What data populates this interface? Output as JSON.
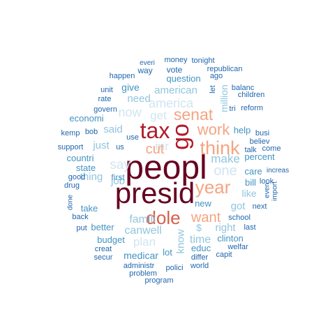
{
  "word_cloud": {
    "palette": {
      "darkest_red": "#67001f",
      "dark_red": "#b2182b",
      "salmon": "#d6604d",
      "light_salmon": "#f4a582",
      "pale_peach": "#fddbc7",
      "pale_blue": "#d1e5f0",
      "light_blue": "#92c5de",
      "mid_blue": "#4393c3",
      "dark_blue": "#2166ac"
    },
    "words": [
      {
        "text": "peopl",
        "color": "#67001f"
      },
      {
        "text": "presid",
        "color": "#67001f"
      },
      {
        "text": "tax",
        "color": "#b2182b"
      },
      {
        "text": "go",
        "color": "#b2182b"
      },
      {
        "text": "dole",
        "color": "#d6604d"
      },
      {
        "text": "year",
        "color": "#f4a582"
      },
      {
        "text": "think",
        "color": "#f4a582"
      },
      {
        "text": "senat",
        "color": "#f4a582"
      },
      {
        "text": "work",
        "color": "#f4a582"
      },
      {
        "text": "want",
        "color": "#f4a582"
      },
      {
        "text": "cut",
        "color": "#f4a582"
      },
      {
        "text": "one",
        "color": "#d1e5f0"
      },
      {
        "text": "make",
        "color": "#92c5de"
      },
      {
        "text": "get",
        "color": "#d1e5f0"
      },
      {
        "text": "america",
        "color": "#d1e5f0"
      },
      {
        "text": "now",
        "color": "#d1e5f0"
      },
      {
        "text": "say",
        "color": "#d1e5f0"
      },
      {
        "text": "mr",
        "color": "#d1e5f0"
      },
      {
        "text": "famili",
        "color": "#92c5de"
      },
      {
        "text": "plan",
        "color": "#d1e5f0"
      },
      {
        "text": "canwell",
        "color": "#92c5de"
      },
      {
        "text": "time",
        "color": "#92c5de"
      },
      {
        "text": "right",
        "color": "#92c5de"
      },
      {
        "text": "got",
        "color": "#92c5de"
      },
      {
        "text": "know",
        "color": "#92c5de"
      },
      {
        "text": "american",
        "color": "#92c5de"
      },
      {
        "text": "need",
        "color": "#92c5de"
      },
      {
        "text": "said",
        "color": "#92c5de"
      },
      {
        "text": "just",
        "color": "#92c5de"
      },
      {
        "text": "thing",
        "color": "#92c5de"
      },
      {
        "text": "job",
        "color": "#92c5de"
      },
      {
        "text": "like",
        "color": "#92c5de"
      },
      {
        "text": "million",
        "color": "#92c5de"
      },
      {
        "text": "give",
        "color": "#4393c3"
      },
      {
        "text": "question",
        "color": "#4393c3"
      },
      {
        "text": "economi",
        "color": "#4393c3"
      },
      {
        "text": "state",
        "color": "#4393c3"
      },
      {
        "text": "countri",
        "color": "#4393c3"
      },
      {
        "text": "take",
        "color": "#4393c3"
      },
      {
        "text": "better",
        "color": "#4393c3"
      },
      {
        "text": "budget",
        "color": "#4393c3"
      },
      {
        "text": "medicar",
        "color": "#4393c3"
      },
      {
        "text": "first",
        "color": "#4393c3"
      },
      {
        "text": "new",
        "color": "#4393c3"
      },
      {
        "text": "$",
        "color": "#92c5de"
      },
      {
        "text": "educ",
        "color": "#4393c3"
      },
      {
        "text": "lot",
        "color": "#4393c3"
      },
      {
        "text": "bill",
        "color": "#4393c3"
      },
      {
        "text": "percent",
        "color": "#4393c3"
      },
      {
        "text": "care",
        "color": "#4393c3"
      },
      {
        "text": "help",
        "color": "#4393c3"
      },
      {
        "text": "clinton",
        "color": "#4393c3"
      },
      {
        "text": "way",
        "color": "#2166ac"
      },
      {
        "text": "everi",
        "color": "#2166ac"
      },
      {
        "text": "money",
        "color": "#2166ac"
      },
      {
        "text": "tonight",
        "color": "#2166ac"
      },
      {
        "text": "vote",
        "color": "#2166ac"
      },
      {
        "text": "republican",
        "color": "#2166ac"
      },
      {
        "text": "ago",
        "color": "#2166ac"
      },
      {
        "text": "happen",
        "color": "#2166ac"
      },
      {
        "text": "let",
        "color": "#2166ac"
      },
      {
        "text": "balanc",
        "color": "#2166ac"
      },
      {
        "text": "children",
        "color": "#2166ac"
      },
      {
        "text": "unit",
        "color": "#2166ac"
      },
      {
        "text": "rate",
        "color": "#2166ac"
      },
      {
        "text": "govern",
        "color": "#2166ac"
      },
      {
        "text": "tri",
        "color": "#2166ac"
      },
      {
        "text": "reform",
        "color": "#2166ac"
      },
      {
        "text": "kemp",
        "color": "#2166ac"
      },
      {
        "text": "bob",
        "color": "#2166ac"
      },
      {
        "text": "use",
        "color": "#2166ac"
      },
      {
        "text": "us",
        "color": "#2166ac"
      },
      {
        "text": "support",
        "color": "#2166ac"
      },
      {
        "text": "busi",
        "color": "#2166ac"
      },
      {
        "text": "believ",
        "color": "#2166ac"
      },
      {
        "text": "come",
        "color": "#2166ac"
      },
      {
        "text": "talk",
        "color": "#2166ac"
      },
      {
        "text": "look",
        "color": "#2166ac"
      },
      {
        "text": "increas",
        "color": "#2166ac"
      },
      {
        "text": "good",
        "color": "#2166ac"
      },
      {
        "text": "drug",
        "color": "#2166ac"
      },
      {
        "text": "even",
        "color": "#2166ac"
      },
      {
        "text": "import",
        "color": "#2166ac"
      },
      {
        "text": "done",
        "color": "#2166ac"
      },
      {
        "text": "next",
        "color": "#2166ac"
      },
      {
        "text": "back",
        "color": "#2166ac"
      },
      {
        "text": "school",
        "color": "#2166ac"
      },
      {
        "text": "put",
        "color": "#2166ac"
      },
      {
        "text": "last",
        "color": "#2166ac"
      },
      {
        "text": "creat",
        "color": "#2166ac"
      },
      {
        "text": "welfar",
        "color": "#2166ac"
      },
      {
        "text": "secur",
        "color": "#2166ac"
      },
      {
        "text": "differ",
        "color": "#2166ac"
      },
      {
        "text": "capit",
        "color": "#2166ac"
      },
      {
        "text": "administr",
        "color": "#2166ac"
      },
      {
        "text": "world",
        "color": "#2166ac"
      },
      {
        "text": "polici",
        "color": "#2166ac"
      },
      {
        "text": "problem",
        "color": "#2166ac"
      },
      {
        "text": "program",
        "color": "#2166ac"
      }
    ]
  }
}
